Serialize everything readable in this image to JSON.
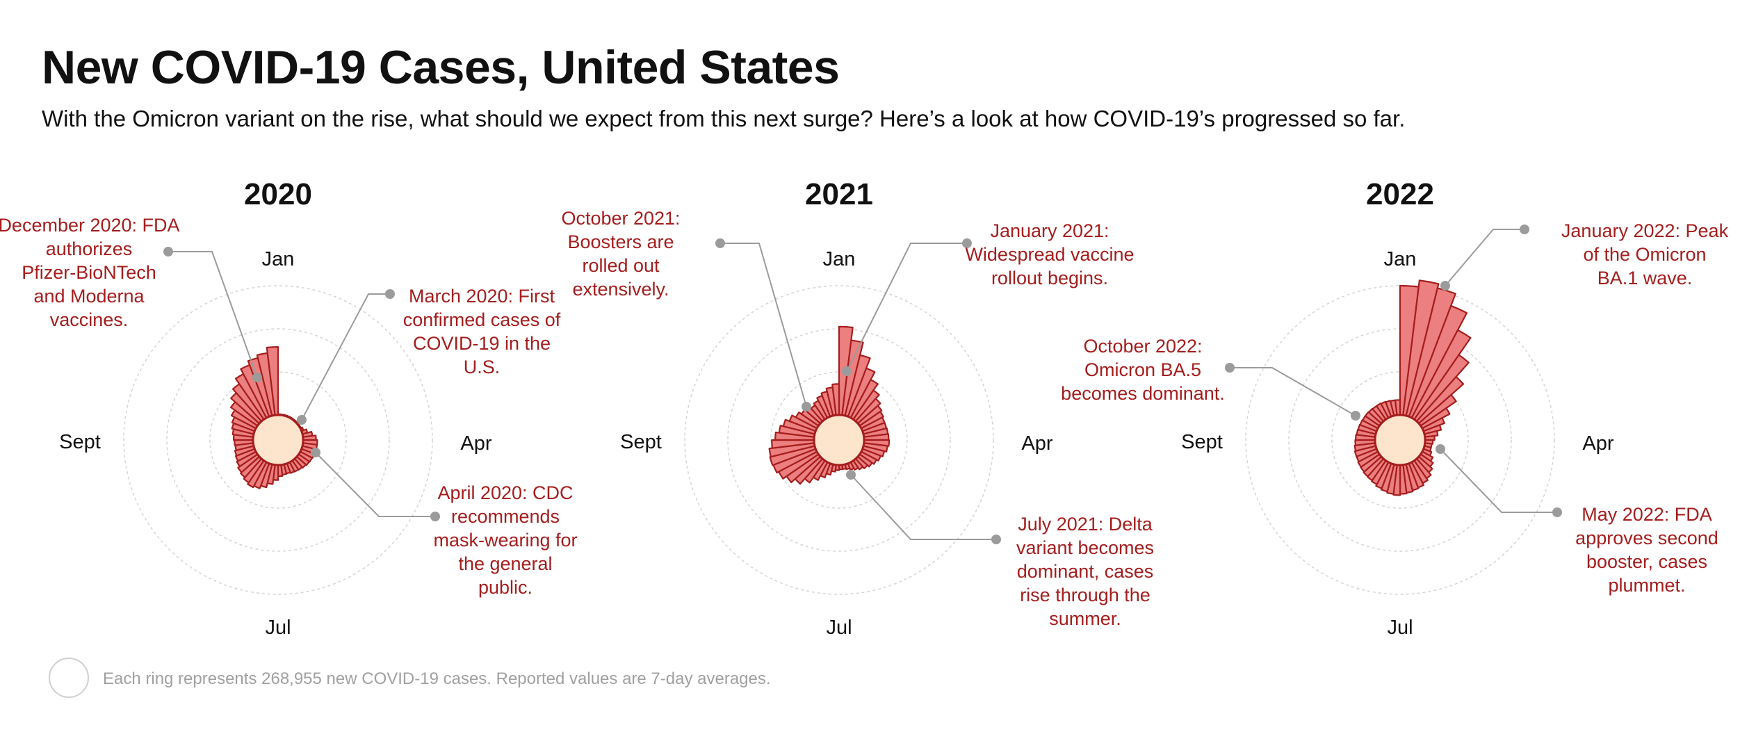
{
  "title": "New COVID-19 Cases, United States",
  "subtitle": "With the Omicron variant on the rise, what should we expect from this next surge? Here’s a look at how COVID-19’s progressed so far.",
  "footnote": "Each ring represents 268,955 new COVID-19 cases. Reported values are 7-day averages.",
  "colors": {
    "fill": "#ec7f7f",
    "stroke": "#a51d1d",
    "center": "#fde4cd",
    "annotation": "#a51d1d",
    "leader": "#9b9b9b",
    "ring": "#d4d4d4"
  },
  "chart_data": [
    {
      "type": "radial-bar",
      "title": "2020",
      "month_labels": {
        "jan": "Jan",
        "apr": "Apr",
        "jul": "Jul",
        "sept": "Sept"
      },
      "ring_unit": 268955,
      "weekly_rings": [
        0.02,
        0.02,
        0.02,
        0.02,
        0.02,
        0.02,
        0.02,
        0.02,
        0.02,
        0.05,
        0.12,
        0.22,
        0.3,
        0.33,
        0.33,
        0.32,
        0.32,
        0.31,
        0.3,
        0.28,
        0.26,
        0.25,
        0.24,
        0.22,
        0.23,
        0.26,
        0.35,
        0.45,
        0.55,
        0.62,
        0.66,
        0.62,
        0.58,
        0.55,
        0.5,
        0.47,
        0.45,
        0.42,
        0.43,
        0.45,
        0.48,
        0.52,
        0.56,
        0.64,
        0.75,
        0.88,
        1.0,
        1.15,
        1.28,
        1.38,
        1.45,
        1.58
      ],
      "annotations": [
        {
          "text": "December 2020: FDA authorizes Pfizer-BioNTech and Moderna vaccines."
        },
        {
          "text": "March 2020: First confirmed cases of COVID-19 in the U.S."
        },
        {
          "text": "April 2020: CDC recommends mask-wearing for the general public."
        }
      ]
    },
    {
      "type": "radial-bar",
      "title": "2021",
      "month_labels": {
        "jan": "Jan",
        "apr": "Apr",
        "jul": "Jul",
        "sept": "Sept"
      },
      "ring_unit": 268955,
      "weekly_rings": [
        2.05,
        1.75,
        1.45,
        1.2,
        1.0,
        0.82,
        0.7,
        0.62,
        0.58,
        0.55,
        0.55,
        0.56,
        0.57,
        0.58,
        0.55,
        0.5,
        0.45,
        0.4,
        0.35,
        0.3,
        0.25,
        0.2,
        0.16,
        0.12,
        0.1,
        0.1,
        0.12,
        0.16,
        0.25,
        0.35,
        0.47,
        0.62,
        0.78,
        0.9,
        1.0,
        1.05,
        1.07,
        1.05,
        0.98,
        0.9,
        0.82,
        0.75,
        0.65,
        0.55,
        0.48,
        0.42,
        0.4,
        0.45,
        0.52,
        0.58,
        0.65,
        0.72
      ],
      "annotations": [
        {
          "text": "October 2021: Boosters are rolled out extensively."
        },
        {
          "text": "January 2021: Widespread vaccine rollout begins."
        },
        {
          "text": "July 2021: Delta variant becomes dominant, cases rise through the summer."
        }
      ]
    },
    {
      "type": "radial-bar",
      "title": "2022",
      "month_labels": {
        "jan": "Jan",
        "apr": "Apr",
        "jul": "Jul",
        "sept": "Sept"
      },
      "ring_unit": 268955,
      "weekly_rings": [
        3.0,
        3.15,
        3.05,
        2.75,
        2.3,
        1.82,
        1.38,
        1.0,
        0.72,
        0.52,
        0.4,
        0.3,
        0.22,
        0.18,
        0.16,
        0.16,
        0.2,
        0.28,
        0.35,
        0.42,
        0.5,
        0.55,
        0.6,
        0.62,
        0.65,
        0.67,
        0.7,
        0.68,
        0.65,
        0.62,
        0.58,
        0.56,
        0.55,
        0.53,
        0.52,
        0.5,
        0.5,
        0.48,
        0.46,
        0.45,
        0.43,
        0.42,
        0.41,
        0.4,
        0.4,
        0.39,
        0.38,
        0.38,
        0.37,
        0.36,
        0.35,
        0.35
      ],
      "annotations": [
        {
          "text": "January 2022: Peak of the Omicron BA.1 wave."
        },
        {
          "text": "October 2022: Omicron BA.5 becomes dominant."
        },
        {
          "text": "May 2022: FDA approves second booster, cases plummet."
        }
      ]
    }
  ]
}
